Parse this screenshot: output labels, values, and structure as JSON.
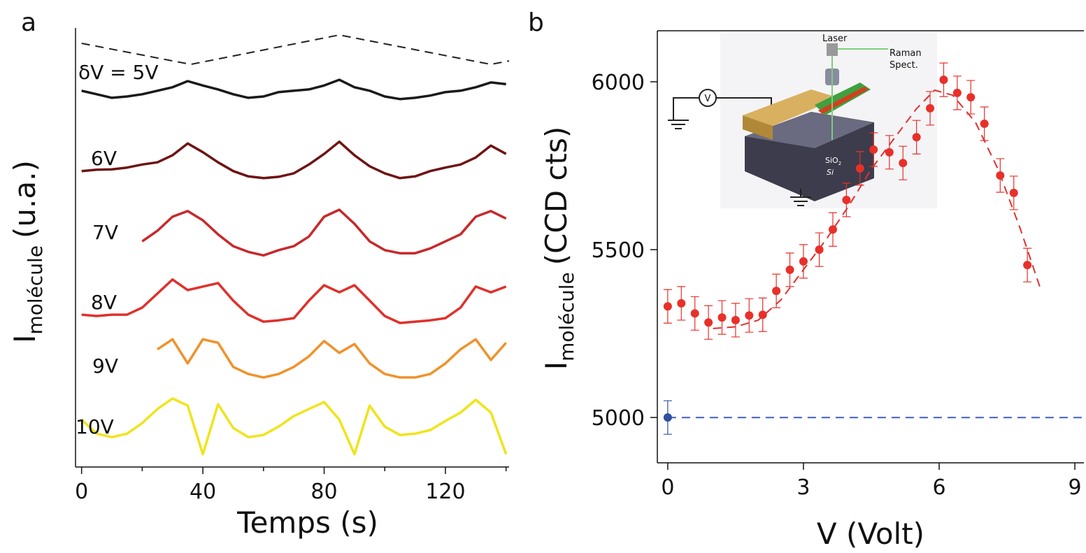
{
  "chart_data": [
    {
      "type": "line",
      "panel": "a",
      "xlabel": "Temps (s)",
      "ylabel": "I",
      "ylabel_sub": "molécule",
      "ylabel_unit": "(u.a.)",
      "xlim": [
        -2,
        141
      ],
      "ylim": [
        0,
        100
      ],
      "xticks": [
        0,
        40,
        80,
        120
      ],
      "xminorticks": [
        20,
        60,
        100,
        140
      ],
      "x": [
        0,
        5,
        10,
        15,
        20,
        25,
        30,
        35,
        40,
        45,
        50,
        55,
        60,
        65,
        70,
        75,
        80,
        85,
        90,
        95,
        100,
        105,
        110,
        115,
        120,
        125,
        130,
        135,
        140
      ],
      "series": [
        {
          "color": "#222222",
          "dash": true,
          "x": [
            0,
            36,
            85,
            135,
            141
          ],
          "values": [
            96.5,
            91.7,
            98.4,
            91.7,
            92.5
          ]
        },
        {
          "name": "δV = 5V",
          "color": "#1a1a1a",
          "values": [
            85.7,
            84.9,
            84.1,
            84.4,
            84.9,
            85.7,
            86.5,
            87.9,
            86.9,
            86.0,
            84.9,
            84.1,
            84.4,
            85.4,
            85.7,
            86.0,
            86.9,
            88.2,
            86.5,
            85.7,
            84.4,
            83.8,
            84.1,
            84.6,
            85.4,
            85.7,
            86.5,
            87.6,
            87.2
          ]
        },
        {
          "name": "6V",
          "color": "#6e1414",
          "values": [
            67.4,
            67.7,
            67.8,
            68.2,
            68.9,
            69.4,
            71.0,
            73.7,
            71.7,
            69.4,
            67.4,
            66.2,
            65.8,
            66.1,
            66.9,
            68.9,
            71.3,
            74.1,
            71.0,
            68.5,
            66.9,
            65.8,
            66.2,
            67.4,
            68.2,
            68.9,
            70.5,
            73.2,
            71.3
          ]
        },
        {
          "name": "7V",
          "color": "#c8282a",
          "values": [
            null,
            null,
            null,
            null,
            51.4,
            53.8,
            57.0,
            58.3,
            56.2,
            53.0,
            50.3,
            49.0,
            48.2,
            49.4,
            50.3,
            52.5,
            57.0,
            58.6,
            55.4,
            51.4,
            49.4,
            48.7,
            48.7,
            49.8,
            51.4,
            53.0,
            57.0,
            58.3,
            56.6
          ]
        },
        {
          "name": "8V",
          "color": "#e0302a",
          "values": [
            34.7,
            34.4,
            34.7,
            34.7,
            36.3,
            39.5,
            42.7,
            40.3,
            41.1,
            41.9,
            37.9,
            34.7,
            33.1,
            33.4,
            33.9,
            37.9,
            41.4,
            39.8,
            41.4,
            37.9,
            34.4,
            32.8,
            33.1,
            33.4,
            33.9,
            36.3,
            41.1,
            39.8,
            41.1
          ]
        },
        {
          "name": "9V",
          "color": "#f0922a",
          "values": [
            null,
            null,
            null,
            null,
            null,
            26.8,
            29.1,
            23.6,
            29.1,
            28.3,
            22.8,
            21.2,
            20.4,
            21.2,
            22.8,
            25.2,
            28.7,
            26.0,
            28.0,
            23.6,
            21.2,
            20.4,
            20.4,
            21.2,
            23.6,
            26.8,
            29.1,
            24.4,
            28.3
          ]
        },
        {
          "name": "10V",
          "color": "#f0e41c",
          "values": [
            10.8,
            7.6,
            6.8,
            7.6,
            10.0,
            13.2,
            15.6,
            14.0,
            2.9,
            14.3,
            8.9,
            6.8,
            7.3,
            9.2,
            11.6,
            13.2,
            14.8,
            10.8,
            2.9,
            14.0,
            9.2,
            7.3,
            7.6,
            8.4,
            10.5,
            12.4,
            15.3,
            12.4,
            2.9
          ]
        }
      ]
    },
    {
      "type": "scatter",
      "panel": "b",
      "xlabel": "V (Volt)",
      "ylabel": "I",
      "ylabel_sub": "molécule",
      "ylabel_unit": "(CCD cts)",
      "xlim": [
        -0.23,
        9.2
      ],
      "ylim": [
        4865,
        6152
      ],
      "xticks": [
        0,
        3,
        6,
        9
      ],
      "yticks": [
        5000,
        5500,
        6000
      ],
      "box": true,
      "series": [
        {
          "type": "line",
          "color": "#e03030",
          "dash": true,
          "x": [
            1.0,
            1.5,
            2.0,
            2.5,
            3.0,
            3.5,
            4.0,
            4.5,
            5.0,
            5.5,
            5.9,
            6.3,
            6.8,
            7.3,
            7.8,
            8.25
          ],
          "values": [
            5265,
            5270,
            5290,
            5350,
            5440,
            5530,
            5630,
            5740,
            5830,
            5920,
            5975,
            5960,
            5880,
            5740,
            5560,
            5380
          ]
        },
        {
          "type": "line",
          "color": "#4060c0",
          "dash": true,
          "x": [
            0,
            9.2
          ],
          "values": [
            5000,
            5000
          ]
        },
        {
          "type": "scatter",
          "color": "#e8302a",
          "x": [
            0,
            0.3,
            0.6,
            0.9,
            1.2,
            1.5,
            1.8,
            2.1,
            2.4,
            2.7,
            3.0,
            3.35,
            3.65,
            3.95,
            4.25,
            4.55,
            4.9,
            5.2,
            5.5,
            5.8,
            6.1,
            6.4,
            6.7,
            7.0,
            7.35,
            7.65,
            7.95
          ],
          "values": [
            5331,
            5340,
            5310,
            5283,
            5298,
            5290,
            5304,
            5306,
            5377,
            5440,
            5465,
            5500,
            5560,
            5648,
            5742,
            5798,
            5790,
            5758,
            5835,
            5921,
            6006,
            5967,
            5954,
            5875,
            5721,
            5669,
            5454
          ],
          "errors": [
            50,
            50,
            50,
            50,
            50,
            50,
            50,
            50,
            50,
            50,
            50,
            50,
            50,
            50,
            50,
            50,
            50,
            50,
            50,
            50,
            50,
            50,
            50,
            50,
            50,
            50,
            50
          ]
        },
        {
          "type": "scatter",
          "color": "#3050a0",
          "x": [
            0
          ],
          "values": [
            5000
          ],
          "errors": [
            50
          ]
        }
      ],
      "inset": {
        "laser": "Laser",
        "raman": "Raman",
        "spect": "Spect.",
        "voltmeter": "V",
        "sio": "SiO",
        "sio_sub": "2",
        "si": "Si"
      }
    }
  ]
}
